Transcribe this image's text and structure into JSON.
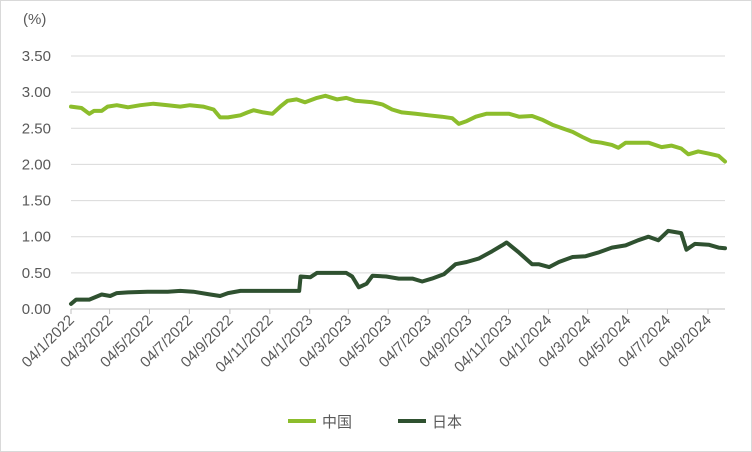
{
  "chart_data": {
    "type": "line",
    "ylabel": "(%)",
    "ylim": [
      0,
      3.5
    ],
    "y_ticks": [
      "0.00",
      "0.50",
      "1.00",
      "1.50",
      "2.00",
      "2.50",
      "3.00",
      "3.50"
    ],
    "x_range": [
      "2022-01-04",
      "2024-09-30"
    ],
    "x_tick_labels": [
      "04/1/2022",
      "04/3/2022",
      "04/5/2022",
      "04/7/2022",
      "04/9/2022",
      "04/11/2022",
      "04/1/2023",
      "04/3/2023",
      "04/5/2023",
      "04/7/2023",
      "04/9/2023",
      "04/11/2023",
      "04/1/2024",
      "04/3/2024",
      "04/5/2024",
      "04/7/2024",
      "04/9/2024"
    ],
    "x_tick_dates": [
      "2022-01-04",
      "2022-03-04",
      "2022-05-04",
      "2022-07-04",
      "2022-09-04",
      "2022-11-04",
      "2023-01-04",
      "2023-03-04",
      "2023-05-04",
      "2023-07-04",
      "2023-09-04",
      "2023-11-04",
      "2024-01-04",
      "2024-03-04",
      "2024-05-04",
      "2024-07-04",
      "2024-09-04"
    ],
    "grid": "horizontal",
    "legend": "bottom",
    "series": [
      {
        "name": "中国",
        "color": "#8cbd2c",
        "points": [
          [
            "2022-01-04",
            2.8
          ],
          [
            "2022-01-20",
            2.78
          ],
          [
            "2022-02-01",
            2.7
          ],
          [
            "2022-02-08",
            2.74
          ],
          [
            "2022-02-20",
            2.74
          ],
          [
            "2022-03-01",
            2.8
          ],
          [
            "2022-03-15",
            2.82
          ],
          [
            "2022-04-01",
            2.79
          ],
          [
            "2022-04-20",
            2.82
          ],
          [
            "2022-05-10",
            2.84
          ],
          [
            "2022-06-01",
            2.82
          ],
          [
            "2022-06-20",
            2.8
          ],
          [
            "2022-07-05",
            2.82
          ],
          [
            "2022-07-25",
            2.8
          ],
          [
            "2022-08-10",
            2.76
          ],
          [
            "2022-08-20",
            2.65
          ],
          [
            "2022-09-01",
            2.65
          ],
          [
            "2022-09-20",
            2.68
          ],
          [
            "2022-10-01",
            2.72
          ],
          [
            "2022-10-10",
            2.75
          ],
          [
            "2022-10-25",
            2.72
          ],
          [
            "2022-11-08",
            2.7
          ],
          [
            "2022-11-20",
            2.8
          ],
          [
            "2022-12-01",
            2.88
          ],
          [
            "2022-12-15",
            2.9
          ],
          [
            "2022-12-28",
            2.86
          ],
          [
            "2023-01-15",
            2.92
          ],
          [
            "2023-01-28",
            2.95
          ],
          [
            "2023-02-15",
            2.9
          ],
          [
            "2023-03-01",
            2.92
          ],
          [
            "2023-03-15",
            2.88
          ],
          [
            "2023-04-10",
            2.86
          ],
          [
            "2023-04-25",
            2.83
          ],
          [
            "2023-05-10",
            2.76
          ],
          [
            "2023-05-25",
            2.72
          ],
          [
            "2023-06-15",
            2.7
          ],
          [
            "2023-07-05",
            2.68
          ],
          [
            "2023-07-25",
            2.66
          ],
          [
            "2023-08-10",
            2.64
          ],
          [
            "2023-08-20",
            2.56
          ],
          [
            "2023-09-01",
            2.6
          ],
          [
            "2023-09-15",
            2.66
          ],
          [
            "2023-10-01",
            2.7
          ],
          [
            "2023-10-20",
            2.7
          ],
          [
            "2023-11-05",
            2.7
          ],
          [
            "2023-11-20",
            2.66
          ],
          [
            "2023-12-10",
            2.67
          ],
          [
            "2023-12-25",
            2.62
          ],
          [
            "2024-01-10",
            2.55
          ],
          [
            "2024-01-25",
            2.5
          ],
          [
            "2024-02-10",
            2.45
          ],
          [
            "2024-02-25",
            2.38
          ],
          [
            "2024-03-10",
            2.32
          ],
          [
            "2024-03-25",
            2.3
          ],
          [
            "2024-04-10",
            2.27
          ],
          [
            "2024-04-20",
            2.23
          ],
          [
            "2024-05-01",
            2.3
          ],
          [
            "2024-05-20",
            2.3
          ],
          [
            "2024-06-05",
            2.3
          ],
          [
            "2024-06-25",
            2.24
          ],
          [
            "2024-07-10",
            2.26
          ],
          [
            "2024-07-25",
            2.22
          ],
          [
            "2024-08-05",
            2.14
          ],
          [
            "2024-08-20",
            2.18
          ],
          [
            "2024-09-05",
            2.15
          ],
          [
            "2024-09-20",
            2.12
          ],
          [
            "2024-09-30",
            2.04
          ]
        ]
      },
      {
        "name": "日本",
        "color": "#2f5130",
        "points": [
          [
            "2022-01-04",
            0.07
          ],
          [
            "2022-01-12",
            0.13
          ],
          [
            "2022-02-01",
            0.13
          ],
          [
            "2022-02-20",
            0.2
          ],
          [
            "2022-03-05",
            0.18
          ],
          [
            "2022-03-15",
            0.22
          ],
          [
            "2022-04-01",
            0.23
          ],
          [
            "2022-05-01",
            0.24
          ],
          [
            "2022-06-01",
            0.24
          ],
          [
            "2022-06-20",
            0.25
          ],
          [
            "2022-07-10",
            0.24
          ],
          [
            "2022-08-05",
            0.2
          ],
          [
            "2022-08-20",
            0.18
          ],
          [
            "2022-09-01",
            0.22
          ],
          [
            "2022-09-20",
            0.25
          ],
          [
            "2022-10-15",
            0.25
          ],
          [
            "2022-12-19",
            0.25
          ],
          [
            "2022-12-21",
            0.45
          ],
          [
            "2023-01-05",
            0.44
          ],
          [
            "2023-01-15",
            0.5
          ],
          [
            "2023-02-10",
            0.5
          ],
          [
            "2023-03-01",
            0.5
          ],
          [
            "2023-03-10",
            0.45
          ],
          [
            "2023-03-20",
            0.3
          ],
          [
            "2023-04-01",
            0.35
          ],
          [
            "2023-04-10",
            0.46
          ],
          [
            "2023-05-01",
            0.45
          ],
          [
            "2023-05-20",
            0.42
          ],
          [
            "2023-06-10",
            0.42
          ],
          [
            "2023-06-25",
            0.38
          ],
          [
            "2023-07-10",
            0.42
          ],
          [
            "2023-07-28",
            0.48
          ],
          [
            "2023-08-15",
            0.62
          ],
          [
            "2023-09-01",
            0.65
          ],
          [
            "2023-09-20",
            0.7
          ],
          [
            "2023-10-10",
            0.8
          ],
          [
            "2023-10-25",
            0.88
          ],
          [
            "2023-11-01",
            0.92
          ],
          [
            "2023-11-20",
            0.78
          ],
          [
            "2023-12-10",
            0.62
          ],
          [
            "2023-12-20",
            0.62
          ],
          [
            "2024-01-05",
            0.58
          ],
          [
            "2024-01-20",
            0.65
          ],
          [
            "2024-02-10",
            0.72
          ],
          [
            "2024-03-01",
            0.73
          ],
          [
            "2024-03-20",
            0.78
          ],
          [
            "2024-04-10",
            0.85
          ],
          [
            "2024-05-01",
            0.88
          ],
          [
            "2024-05-20",
            0.95
          ],
          [
            "2024-06-05",
            1.0
          ],
          [
            "2024-06-20",
            0.95
          ],
          [
            "2024-07-05",
            1.08
          ],
          [
            "2024-07-25",
            1.05
          ],
          [
            "2024-08-02",
            0.82
          ],
          [
            "2024-08-15",
            0.9
          ],
          [
            "2024-09-05",
            0.89
          ],
          [
            "2024-09-20",
            0.85
          ],
          [
            "2024-09-30",
            0.84
          ]
        ]
      }
    ]
  }
}
